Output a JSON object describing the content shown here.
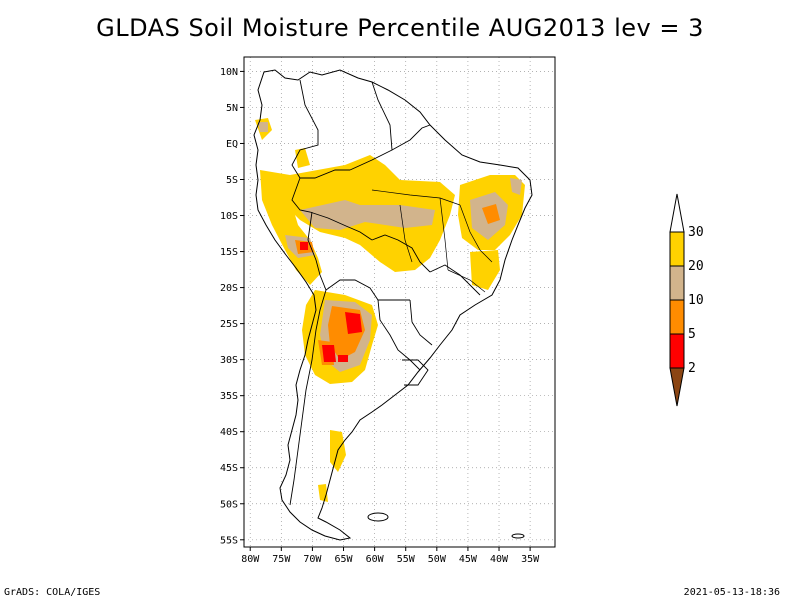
{
  "title": "GLDAS Soil Moisture Percentile AUG2013 lev = 3",
  "footer": {
    "left": "GrADS: COLA/IGES",
    "right": "2021-05-13-18:36"
  },
  "map": {
    "lat_range": [
      -56,
      12
    ],
    "lon_range": [
      -81,
      -31
    ],
    "lat_ticks": [
      {
        "value": 10,
        "label": "10N"
      },
      {
        "value": 5,
        "label": "5N"
      },
      {
        "value": 0,
        "label": "EQ"
      },
      {
        "value": -5,
        "label": "5S"
      },
      {
        "value": -10,
        "label": "10S"
      },
      {
        "value": -15,
        "label": "15S"
      },
      {
        "value": -20,
        "label": "20S"
      },
      {
        "value": -25,
        "label": "25S"
      },
      {
        "value": -30,
        "label": "30S"
      },
      {
        "value": -35,
        "label": "35S"
      },
      {
        "value": -40,
        "label": "40S"
      },
      {
        "value": -45,
        "label": "45S"
      },
      {
        "value": -50,
        "label": "50S"
      },
      {
        "value": -55,
        "label": "55S"
      }
    ],
    "lon_ticks": [
      {
        "value": -80,
        "label": "80W"
      },
      {
        "value": -75,
        "label": "75W"
      },
      {
        "value": -70,
        "label": "70W"
      },
      {
        "value": -65,
        "label": "65W"
      },
      {
        "value": -60,
        "label": "60W"
      },
      {
        "value": -55,
        "label": "55W"
      },
      {
        "value": -50,
        "label": "50W"
      },
      {
        "value": -45,
        "label": "45W"
      },
      {
        "value": -40,
        "label": "40W"
      },
      {
        "value": -35,
        "label": "35W"
      }
    ]
  },
  "legend": {
    "levels": [
      {
        "label": "30"
      },
      {
        "label": "20"
      },
      {
        "label": "10"
      },
      {
        "label": "5"
      },
      {
        "label": "2"
      }
    ],
    "colors": {
      "above": "#ffffff",
      "c20_30": "#ffd200",
      "c10_20": "#d2b48c",
      "c5_10": "#ff8c00",
      "c2_5": "#ff0000",
      "below": "#8b4513"
    }
  }
}
